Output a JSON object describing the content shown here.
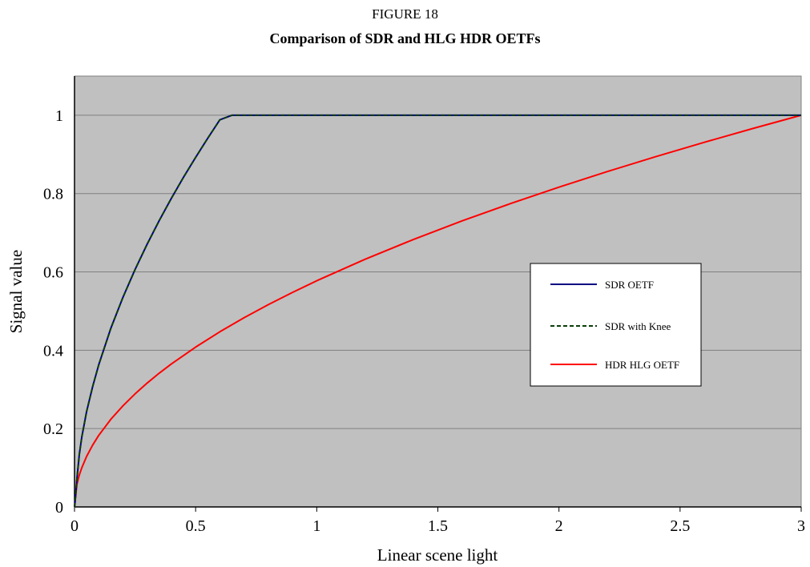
{
  "figure": {
    "number": "FIGURE 18",
    "title": "Comparison of SDR and HLG HDR OETFs"
  },
  "chart_data": {
    "type": "line",
    "xlabel": "Linear scene light",
    "ylabel": "Signal value",
    "xlim": [
      0,
      3
    ],
    "ylim": [
      0,
      1.1
    ],
    "x_ticks": [
      "0",
      "0.5",
      "1",
      "1.5",
      "2",
      "2.5",
      "3"
    ],
    "y_ticks": [
      "0",
      "0.2",
      "0.4",
      "0.6",
      "0.8",
      "1"
    ],
    "grid": "horizontal",
    "plot_background": "#c0c0c0",
    "legend_position": "center-right",
    "series": [
      {
        "name": "SDR OETF",
        "color": "#000080",
        "dash": "solid",
        "x": [
          0,
          0.0018,
          0.01,
          0.02,
          0.03,
          0.05,
          0.075,
          0.1,
          0.15,
          0.2,
          0.25,
          0.3,
          0.35,
          0.4,
          0.45,
          0.5,
          0.55,
          0.6,
          0.65,
          0.7,
          0.75,
          0.8,
          0.85,
          0.9,
          0.95,
          1.0,
          1.5,
          2.0,
          2.5,
          3.0
        ],
        "y": [
          0,
          0.008,
          0.0713,
          0.1342,
          0.1784,
          0.2437,
          0.3077,
          0.3628,
          0.456,
          0.5354,
          0.6062,
          0.671,
          0.7313,
          0.7879,
          0.8415,
          0.8925,
          0.9414,
          0.9884,
          1.0,
          1.0,
          1.0,
          1.0,
          1.0,
          1.0,
          1.0,
          1.0,
          1.0,
          1.0,
          1.0,
          1.0
        ]
      },
      {
        "name": "SDR with Knee",
        "color": "#0b3d0b",
        "dash": "dashed",
        "x": [
          0,
          0.0018,
          0.01,
          0.02,
          0.03,
          0.05,
          0.075,
          0.1,
          0.15,
          0.2,
          0.25,
          0.3,
          0.35,
          0.4,
          0.45,
          0.5,
          0.55,
          0.6,
          0.65,
          0.7,
          0.75,
          0.76,
          1.0,
          1.5,
          2.0,
          2.5,
          3.0
        ],
        "y": [
          0,
          0.008,
          0.0713,
          0.1342,
          0.1784,
          0.2437,
          0.3077,
          0.3628,
          0.456,
          0.5354,
          0.6062,
          0.671,
          0.7313,
          0.7879,
          0.8415,
          0.8925,
          0.9414,
          0.9884,
          1.0,
          1.0,
          1.0,
          1.0,
          1.0,
          1.0,
          1.0,
          1.0,
          1.0
        ]
      },
      {
        "name": "HDR HLG OETF",
        "color": "#ff0000",
        "dash": "solid",
        "x": [
          0,
          0.01,
          0.02,
          0.03,
          0.05,
          0.075,
          0.1,
          0.15,
          0.2,
          0.25,
          0.3,
          0.35,
          0.4,
          0.5,
          0.6,
          0.7,
          0.8,
          0.9,
          1.0,
          1.2,
          1.4,
          1.6,
          1.8,
          2.0,
          2.2,
          2.4,
          2.6,
          2.8,
          3.0
        ],
        "y": [
          0,
          0.0577,
          0.0816,
          0.1,
          0.129,
          0.158,
          0.1826,
          0.2236,
          0.2582,
          0.2887,
          0.3162,
          0.3416,
          0.3652,
          0.4082,
          0.4472,
          0.483,
          0.5164,
          0.5477,
          0.5774,
          0.6325,
          0.6831,
          0.7303,
          0.7746,
          0.8165,
          0.8563,
          0.8944,
          0.9309,
          0.9661,
          1.0
        ]
      }
    ]
  }
}
